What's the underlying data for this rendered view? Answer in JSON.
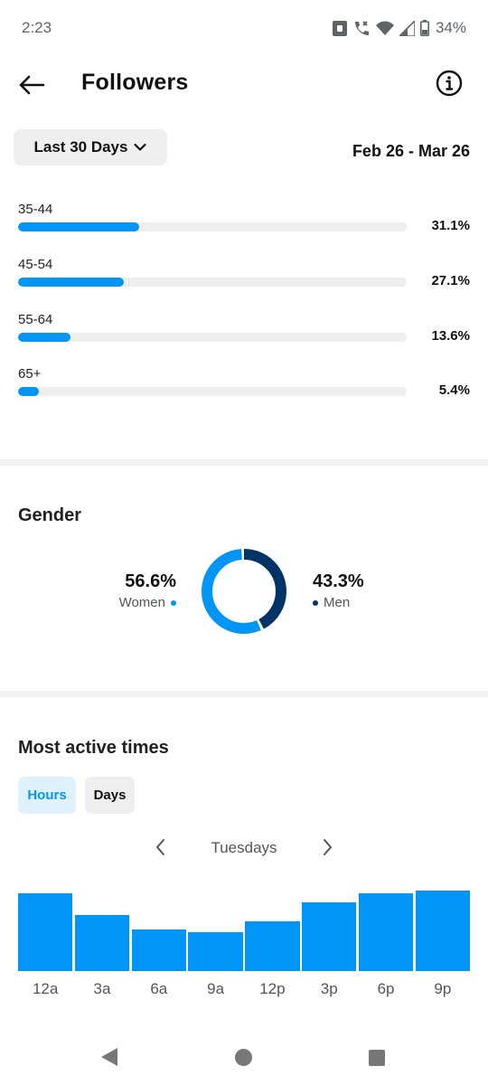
{
  "status_bar": {
    "time": "2:23",
    "battery": "34%",
    "icons": [
      "lock-icon",
      "wifi-calling-icon",
      "wifi-icon",
      "signal-icon",
      "battery-icon"
    ]
  },
  "header": {
    "title": "Followers",
    "back_icon": "arrow-left-icon",
    "info_icon": "info-circle-icon"
  },
  "filter": {
    "range_label": "Last 30 Days",
    "range_icon": "chevron-down-icon",
    "date_range": "Feb 26 - Mar 26"
  },
  "age_ranges": [
    {
      "label": "35-44",
      "percent": "31.1%",
      "value": 31.1
    },
    {
      "label": "45-54",
      "percent": "27.1%",
      "value": 27.1
    },
    {
      "label": "55-64",
      "percent": "13.6%",
      "value": 13.6
    },
    {
      "label": "65+",
      "percent": "5.4%",
      "value": 5.4
    }
  ],
  "gender": {
    "title": "Gender",
    "women": {
      "value": "56.6%",
      "label": "Women",
      "percent": 56.6,
      "color": "#0095f6"
    },
    "men": {
      "value": "43.3%",
      "label": "Men",
      "percent": 43.3,
      "color": "#003366"
    }
  },
  "most_active": {
    "title": "Most active times",
    "tabs": {
      "hours": "Hours",
      "days": "Days"
    },
    "selected_tab": "hours",
    "day": "Tuesdays",
    "prev_icon": "chevron-left-icon",
    "next_icon": "chevron-right-icon",
    "hour_labels": [
      "12a",
      "3a",
      "6a",
      "9a",
      "12p",
      "3p",
      "6p",
      "9p"
    ],
    "activity_levels": [
      0.86,
      0.62,
      0.46,
      0.43,
      0.55,
      0.76,
      0.86,
      0.89
    ],
    "bar_color": "#0095f6"
  },
  "nav_bar": {
    "icons": [
      "back-triangle-icon",
      "home-circle-icon",
      "recents-square-icon"
    ]
  }
}
